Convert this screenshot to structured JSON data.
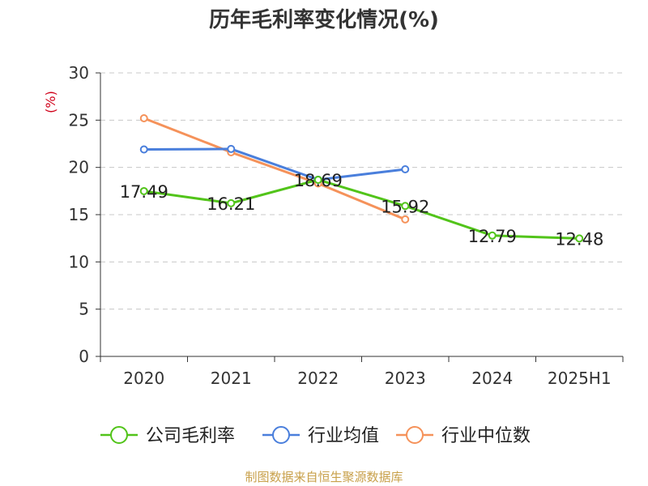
{
  "chart_data": {
    "type": "line",
    "title": "历年毛利率变化情况(%)",
    "ylabel": "(%)",
    "xlabel": "",
    "categories": [
      "2020",
      "2021",
      "2022",
      "2023",
      "2024",
      "2025H1"
    ],
    "ylim": [
      0,
      30
    ],
    "yticks": [
      0,
      5,
      10,
      15,
      20,
      25,
      30
    ],
    "grid": true,
    "legend_position": "bottom",
    "series": [
      {
        "name": "公司毛利率",
        "color": "#52c41a",
        "values": [
          17.49,
          16.21,
          18.69,
          15.92,
          12.79,
          12.48
        ],
        "labels": [
          "17.49",
          "16.21",
          "18.69",
          "15.92",
          "12.79",
          "12.48"
        ]
      },
      {
        "name": "行业均值",
        "color": "#4a7fdc",
        "values": [
          21.9,
          21.95,
          18.7,
          19.8,
          null,
          null
        ]
      },
      {
        "name": "行业中位数",
        "color": "#f5925a",
        "values": [
          25.2,
          21.6,
          18.3,
          14.5,
          null,
          null
        ]
      }
    ]
  },
  "source": "制图数据来自恒生聚源数据库"
}
